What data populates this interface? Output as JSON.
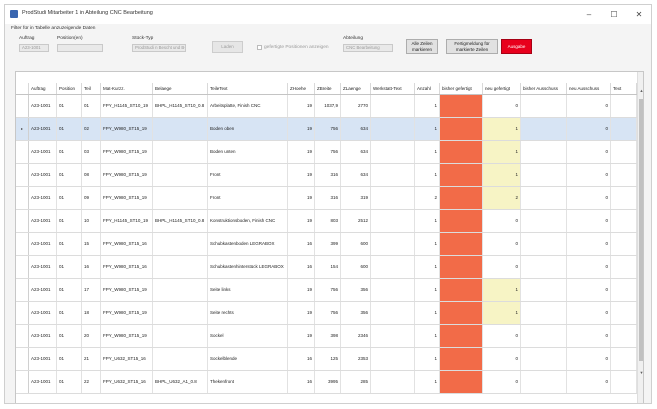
{
  "window": {
    "title": "ProdStudi Mitarbeiter 1 in Abteilung CNC Bearbeitung",
    "minimize": "–",
    "maximize": "☐",
    "close": "✕"
  },
  "filter": {
    "caption": "Filter für in Tabelle anzuzeigende Daten",
    "auftrag_label": "Auftrag",
    "auftrag_value": "A23-1001",
    "position_label": "Position(en)",
    "position_value": "",
    "stuecktyp_label": "Stück-Typ",
    "stuecktyp_value": "ProdStudi n Bescht und B-Fil",
    "laden": "Laden",
    "gefertigte_label": "gefertigte Positionen anzeigen",
    "abteilung_label": "Abteilung",
    "abteilung_value": "CNC Bearbeitung",
    "alle_zeilen": "Alle Zeilen markieren",
    "fertigmeldung": "Fertigmeldung für markierte Zeilen",
    "ausgabe": "Ausgabe"
  },
  "table": {
    "columns": [
      "Auftrag",
      "Position",
      "Teil",
      "Mat-Kurzz.",
      "Belaege",
      "TeileText",
      "ZHoehe",
      "ZBreite",
      "ZLaenge",
      "Werkstatt-Text",
      "Anzahl",
      "bisher gefertigt",
      "neu gefertigt",
      "bisher Ausschuss",
      "neu Ausschuss",
      "Text"
    ],
    "rows": [
      [
        "A23-1001",
        "01",
        "01",
        "FPY_H1145_ST10_19",
        "BHPL_H1145_ST10_0.8",
        "Arbeitsplatte, Finish CNC",
        "19",
        "1037,9",
        "2770",
        "",
        "1",
        "",
        "0",
        "",
        "0",
        ""
      ],
      [
        "A23-1001",
        "01",
        "02",
        "FPY_W980_ST15_19",
        "",
        "Boden oben",
        "19",
        "756",
        "634",
        "",
        "1",
        "",
        "1",
        "",
        "0",
        ""
      ],
      [
        "A23-1001",
        "01",
        "03",
        "FPY_W980_ST15_19",
        "",
        "Boden unten",
        "19",
        "756",
        "634",
        "",
        "1",
        "",
        "1",
        "",
        "0",
        ""
      ],
      [
        "A23-1001",
        "01",
        "08",
        "FPY_W980_ST15_19",
        "",
        "Front",
        "19",
        "316",
        "634",
        "",
        "1",
        "",
        "1",
        "",
        "0",
        ""
      ],
      [
        "A23-1001",
        "01",
        "09",
        "FPY_W980_ST15_19",
        "",
        "Front",
        "19",
        "316",
        "319",
        "",
        "2",
        "",
        "2",
        "",
        "0",
        ""
      ],
      [
        "A23-1001",
        "01",
        "10",
        "FPY_H1145_ST10_19",
        "BHPL_H1145_ST10_0.8",
        "Konstruktionsboden, Finish CNC",
        "19",
        "803",
        "2512",
        "",
        "1",
        "",
        "0",
        "",
        "0",
        ""
      ],
      [
        "A23-1001",
        "01",
        "15",
        "FPY_W980_ST15_16",
        "",
        "Schubkastenboden LEGRABOX",
        "16",
        "399",
        "600",
        "",
        "1",
        "",
        "0",
        "",
        "0",
        ""
      ],
      [
        "A23-1001",
        "01",
        "16",
        "FPY_W980_ST15_16",
        "",
        "Schubkastenhinterstück LEGRABOX",
        "16",
        "154",
        "600",
        "",
        "1",
        "",
        "0",
        "",
        "0",
        ""
      ],
      [
        "A23-1001",
        "01",
        "17",
        "FPY_W980_ST15_19",
        "",
        "Seite links",
        "19",
        "756",
        "356",
        "",
        "1",
        "",
        "1",
        "",
        "0",
        ""
      ],
      [
        "A23-1001",
        "01",
        "18",
        "FPY_W980_ST15_19",
        "",
        "Seite rechts",
        "19",
        "756",
        "356",
        "",
        "1",
        "",
        "1",
        "",
        "0",
        ""
      ],
      [
        "A23-1001",
        "01",
        "20",
        "FPY_W980_ST15_19",
        "",
        "Sockel",
        "19",
        "398",
        "2346",
        "",
        "1",
        "",
        "0",
        "",
        "0",
        ""
      ],
      [
        "A23-1001",
        "01",
        "21",
        "FPY_U632_ST15_16",
        "",
        "Sockelblende",
        "16",
        "125",
        "2353",
        "",
        "1",
        "",
        "0",
        "",
        "0",
        ""
      ],
      [
        "A23-1001",
        "01",
        "22",
        "FPY_U632_ST15_16",
        "BHPL_U632_A1_0.8",
        "Thekenfront",
        "16",
        "3995",
        "285",
        "",
        "1",
        "",
        "0",
        "",
        "0",
        ""
      ]
    ],
    "selected_marker": "▸",
    "colors": {
      "bisher_gefertigt": "#f26b48",
      "neu_gefertigt_filled": "#f7f4c5",
      "selected_row": "#d7e4f4"
    }
  },
  "scrollbar": {
    "up": "▲",
    "down": "▼"
  }
}
